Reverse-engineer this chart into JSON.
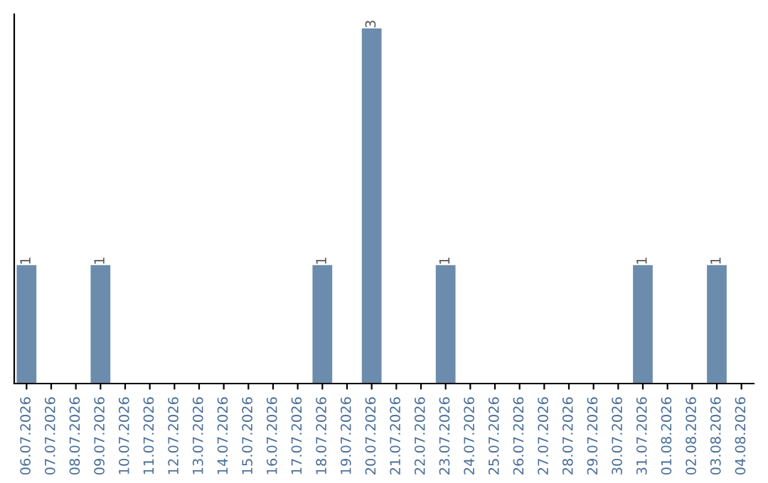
{
  "chart_data": {
    "type": "bar",
    "categories": [
      "06.07.2026",
      "07.07.2026",
      "08.07.2026",
      "09.07.2026",
      "10.07.2026",
      "11.07.2026",
      "12.07.2026",
      "13.07.2026",
      "14.07.2026",
      "15.07.2026",
      "16.07.2026",
      "17.07.2026",
      "18.07.2026",
      "19.07.2026",
      "20.07.2026",
      "21.07.2026",
      "22.07.2026",
      "23.07.2026",
      "24.07.2026",
      "25.07.2026",
      "26.07.2026",
      "27.07.2026",
      "28.07.2026",
      "29.07.2026",
      "30.07.2026",
      "31.07.2026",
      "01.08.2026",
      "02.08.2026",
      "03.08.2026",
      "04.08.2026"
    ],
    "values": [
      1,
      0,
      0,
      1,
      0,
      0,
      0,
      0,
      0,
      0,
      0,
      0,
      1,
      0,
      3,
      0,
      0,
      1,
      0,
      0,
      0,
      0,
      0,
      0,
      0,
      1,
      0,
      0,
      1,
      0
    ],
    "value_labels": [
      "1",
      null,
      null,
      "1",
      null,
      null,
      null,
      null,
      null,
      null,
      null,
      null,
      "1",
      null,
      "3",
      null,
      null,
      "1",
      null,
      null,
      null,
      null,
      null,
      null,
      null,
      "1",
      null,
      null,
      "1",
      null
    ],
    "color": "#6b8cac",
    "tick_labels": "x",
    "grid": false
  }
}
